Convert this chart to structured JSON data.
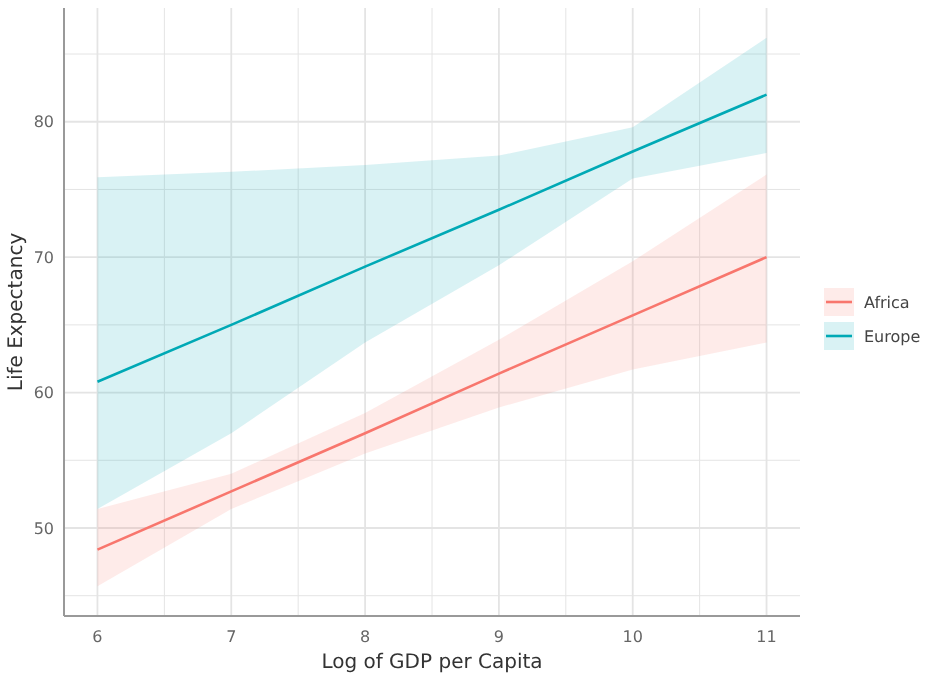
{
  "chart_data": {
    "type": "line",
    "xlabel": "Log of GDP per Capita",
    "ylabel": "Life Expectancy",
    "x": [
      6,
      7,
      8,
      9,
      10,
      11
    ],
    "series": [
      {
        "name": "Africa",
        "color": "#f8766d",
        "values": [
          48.4,
          52.7,
          57.0,
          61.4,
          65.7,
          70.0
        ],
        "lower": [
          45.7,
          51.4,
          55.5,
          58.9,
          61.7,
          63.7
        ],
        "upper": [
          51.4,
          54.0,
          58.5,
          63.9,
          69.7,
          76.1
        ]
      },
      {
        "name": "Europe",
        "color": "#00a9b5",
        "values": [
          60.8,
          65.0,
          69.3,
          73.5,
          77.8,
          82.0
        ],
        "lower": [
          51.4,
          57.0,
          63.7,
          69.4,
          75.8,
          77.7
        ],
        "upper": [
          75.9,
          76.3,
          76.8,
          77.5,
          79.6,
          86.2
        ]
      }
    ],
    "xlim": [
      5.75,
      11.25
    ],
    "ylim": [
      43.5,
      88.4
    ],
    "xticks": [
      6,
      {
        "value": 6.5,
        "label": null
      },
      7,
      {
        "value": 7.5,
        "label": null
      },
      8,
      {
        "value": 8.5,
        "label": null
      },
      9,
      {
        "value": 9.5,
        "label": null
      },
      10,
      {
        "value": 10.5,
        "label": null
      },
      11
    ],
    "yticks": [
      {
        "value": 45,
        "label": null
      },
      50,
      {
        "value": 55,
        "label": null
      },
      60,
      {
        "value": 65,
        "label": null
      },
      70,
      {
        "value": 75,
        "label": null
      },
      80,
      {
        "value": 85,
        "label": null
      }
    ],
    "grid": true,
    "legend": "right",
    "marker": "none",
    "line_style": "solid"
  }
}
